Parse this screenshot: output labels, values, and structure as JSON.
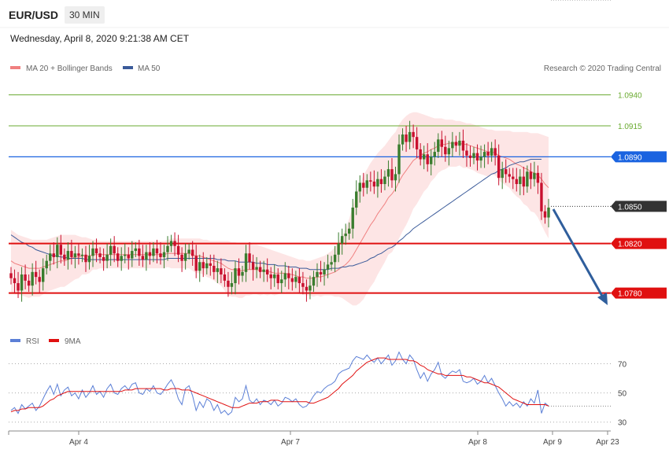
{
  "header": {
    "symbol": "EUR/USD",
    "timeframe": "30 MIN",
    "datetime": "Wednesday, April 8, 2020 9:21:38 AM CET",
    "credit": "Research © 2020 Trading Central"
  },
  "colors": {
    "ma20": "#f08080",
    "ma50": "#3b5b9a",
    "band_fill": "#fde0e0",
    "bull": "#3a7d2e",
    "bear": "#c8102e",
    "resistance": "#1a63e0",
    "support": "#e01010",
    "target_line": "#6aaa30",
    "current": "#333333",
    "arrow": "#2f5e9c",
    "rsi": "#5b7fd6",
    "rsi_ma": "#e01010"
  },
  "chart_data": [
    {
      "type": "candlestick",
      "ylim": [
        1.0755,
        1.0955
      ],
      "legend": [
        {
          "label": "MA 20 + Bollinger Bands",
          "color": "#f08080"
        },
        {
          "label": "MA 50",
          "color": "#3b5b9a"
        }
      ],
      "x_ticks": [
        "Apr 4",
        "Apr 7",
        "Apr 8",
        "Apr 9",
        "Apr 23"
      ],
      "levels": [
        {
          "label": "1.0940",
          "value": 1.094,
          "kind": "target"
        },
        {
          "label": "1.0915",
          "value": 1.0915,
          "kind": "target"
        },
        {
          "label": "1.0890",
          "value": 1.089,
          "kind": "resistance"
        },
        {
          "label": "1.0850",
          "value": 1.085,
          "kind": "current"
        },
        {
          "label": "1.0820",
          "value": 1.082,
          "kind": "support"
        },
        {
          "label": "1.0780",
          "value": 1.078,
          "kind": "support"
        }
      ],
      "close": [
        1.0792,
        1.0788,
        1.0782,
        1.0795,
        1.079,
        1.0786,
        1.0797,
        1.0793,
        1.0789,
        1.08,
        1.0806,
        1.0812,
        1.0809,
        1.0819,
        1.0811,
        1.0807,
        1.0814,
        1.0809,
        1.0812,
        1.081,
        1.0811,
        1.0805,
        1.081,
        1.0816,
        1.0812,
        1.0809,
        1.0806,
        1.0811,
        1.0818,
        1.0812,
        1.0806,
        1.081,
        1.0811,
        1.0808,
        1.0814,
        1.0816,
        1.081,
        1.0807,
        1.0813,
        1.081,
        1.0816,
        1.0812,
        1.0809,
        1.0813,
        1.0818,
        1.0822,
        1.0818,
        1.0811,
        1.0806,
        1.0812,
        1.0815,
        1.081,
        1.0798,
        1.0805,
        1.08,
        1.0804,
        1.0802,
        1.0797,
        1.08,
        1.0795,
        1.079,
        1.0785,
        1.0788,
        1.08,
        1.0794,
        1.0797,
        1.0812,
        1.0805,
        1.0799,
        1.0801,
        1.0797,
        1.0799,
        1.0795,
        1.0792,
        1.0795,
        1.0788,
        1.0791,
        1.0796,
        1.0792,
        1.0789,
        1.0793,
        1.0788,
        1.0785,
        1.0782,
        1.0786,
        1.0793,
        1.0797,
        1.0795,
        1.0799,
        1.0803,
        1.0805,
        1.0811,
        1.082,
        1.0826,
        1.0828,
        1.0832,
        1.0849,
        1.0862,
        1.0869,
        1.0865,
        1.0871,
        1.087,
        1.0866,
        1.0872,
        1.0868,
        1.0874,
        1.088,
        1.0871,
        1.0876,
        1.09,
        1.0908,
        1.0902,
        1.091,
        1.0906,
        1.0896,
        1.0888,
        1.0892,
        1.0884,
        1.089,
        1.0894,
        1.0904,
        1.0898,
        1.0892,
        1.0897,
        1.0902,
        1.0899,
        1.0903,
        1.0895,
        1.0891,
        1.0889,
        1.0893,
        1.0887,
        1.089,
        1.0894,
        1.0891,
        1.0897,
        1.0891,
        1.0873,
        1.088,
        1.0876,
        1.0874,
        1.0872,
        1.0868,
        1.0874,
        1.0866,
        1.0878,
        1.0872,
        1.0877,
        1.0869,
        1.0846,
        1.0841,
        1.0849
      ],
      "ma20": [
        1.0806,
        1.0804,
        1.0803,
        1.0802,
        1.0801,
        1.08,
        1.08,
        1.08,
        1.08,
        1.0801,
        1.0802,
        1.0803,
        1.0804,
        1.0805,
        1.0806,
        1.0806,
        1.0807,
        1.0808,
        1.0809,
        1.0809,
        1.081,
        1.081,
        1.081,
        1.0811,
        1.0811,
        1.0811,
        1.0811,
        1.0811,
        1.0811,
        1.0811,
        1.0811,
        1.0811,
        1.0811,
        1.0811,
        1.0811,
        1.0811,
        1.0811,
        1.0811,
        1.0811,
        1.0811,
        1.0811,
        1.0811,
        1.0811,
        1.0811,
        1.0812,
        1.0812,
        1.0812,
        1.0812,
        1.0812,
        1.0812,
        1.0812,
        1.0811,
        1.081,
        1.081,
        1.0809,
        1.0808,
        1.0807,
        1.0806,
        1.0805,
        1.0804,
        1.0802,
        1.08,
        1.0799,
        1.0799,
        1.0798,
        1.0798,
        1.0799,
        1.0799,
        1.0799,
        1.0799,
        1.0798,
        1.0798,
        1.0797,
        1.0797,
        1.0796,
        1.0796,
        1.0796,
        1.0796,
        1.0795,
        1.0795,
        1.0794,
        1.0793,
        1.0793,
        1.0792,
        1.0792,
        1.0792,
        1.0793,
        1.0793,
        1.0794,
        1.0795,
        1.0796,
        1.0797,
        1.0799,
        1.0801,
        1.0803,
        1.0806,
        1.081,
        1.0815,
        1.082,
        1.0825,
        1.083,
        1.0835,
        1.0839,
        1.0844,
        1.0848,
        1.0852,
        1.0857,
        1.086,
        1.0864,
        1.087,
        1.0875,
        1.0879,
        1.0883,
        1.0887,
        1.0889,
        1.0891,
        1.0893,
        1.0894,
        1.0896,
        1.0897,
        1.0899,
        1.09,
        1.09,
        1.0901,
        1.0901,
        1.0901,
        1.0901,
        1.09,
        1.09,
        1.0899,
        1.0898,
        1.0897,
        1.0896,
        1.0895,
        1.0894,
        1.0894,
        1.0893,
        1.0891,
        1.089,
        1.0889,
        1.0888,
        1.0886,
        1.0884,
        1.0883,
        1.0881,
        1.088,
        1.0878,
        1.0877,
        1.0875,
        1.0872,
        1.0868,
        1.0865
      ],
      "bb_upper": [
        1.0831,
        1.0829,
        1.0827,
        1.0826,
        1.0825,
        1.0824,
        1.0823,
        1.0823,
        1.0823,
        1.0823,
        1.0823,
        1.0824,
        1.0825,
        1.0826,
        1.0827,
        1.0827,
        1.0827,
        1.0827,
        1.0827,
        1.0826,
        1.0825,
        1.0825,
        1.0824,
        1.0823,
        1.0823,
        1.0822,
        1.0822,
        1.0822,
        1.0822,
        1.0822,
        1.0822,
        1.0822,
        1.0822,
        1.0822,
        1.0822,
        1.0822,
        1.0822,
        1.0822,
        1.0822,
        1.0822,
        1.0822,
        1.0822,
        1.0822,
        1.0822,
        1.0823,
        1.0824,
        1.0824,
        1.0824,
        1.0824,
        1.0824,
        1.0824,
        1.0824,
        1.0824,
        1.0824,
        1.0823,
        1.0823,
        1.0822,
        1.0822,
        1.0822,
        1.0822,
        1.0822,
        1.0822,
        1.0821,
        1.0821,
        1.082,
        1.082,
        1.082,
        1.082,
        1.0819,
        1.0819,
        1.0818,
        1.0817,
        1.0816,
        1.0815,
        1.0814,
        1.0813,
        1.0812,
        1.0811,
        1.081,
        1.0809,
        1.0808,
        1.0807,
        1.0807,
        1.0806,
        1.0806,
        1.0807,
        1.0808,
        1.0809,
        1.081,
        1.0812,
        1.0814,
        1.0817,
        1.0821,
        1.0826,
        1.0832,
        1.084,
        1.085,
        1.086,
        1.0868,
        1.0875,
        1.088,
        1.0885,
        1.0889,
        1.0893,
        1.0896,
        1.0899,
        1.0903,
        1.0907,
        1.091,
        1.0916,
        1.092,
        1.0923,
        1.0925,
        1.0926,
        1.0926,
        1.0925,
        1.0924,
        1.0923,
        1.0922,
        1.0921,
        1.0921,
        1.0921,
        1.092,
        1.092,
        1.092,
        1.0919,
        1.0919,
        1.0918,
        1.0917,
        1.0917,
        1.0916,
        1.0915,
        1.0914,
        1.0913,
        1.0912,
        1.0912,
        1.0911,
        1.0911,
        1.0911,
        1.0911,
        1.0911,
        1.091,
        1.091,
        1.091,
        1.091,
        1.091,
        1.0909,
        1.0909,
        1.0909,
        1.0908,
        1.0907,
        1.0906
      ],
      "bb_lower": [
        1.0781,
        1.0779,
        1.0779,
        1.0778,
        1.0777,
        1.0776,
        1.0777,
        1.0777,
        1.0777,
        1.0779,
        1.0781,
        1.0782,
        1.0783,
        1.0784,
        1.0785,
        1.0785,
        1.0787,
        1.0789,
        1.0791,
        1.0792,
        1.0795,
        1.0795,
        1.0796,
        1.0799,
        1.0799,
        1.08,
        1.08,
        1.08,
        1.08,
        1.08,
        1.08,
        1.08,
        1.08,
        1.08,
        1.08,
        1.08,
        1.08,
        1.08,
        1.08,
        1.08,
        1.08,
        1.08,
        1.08,
        1.08,
        1.0801,
        1.08,
        1.08,
        1.08,
        1.08,
        1.08,
        1.08,
        1.0798,
        1.0796,
        1.0796,
        1.0795,
        1.0793,
        1.0792,
        1.079,
        1.0788,
        1.0786,
        1.0782,
        1.0778,
        1.0777,
        1.0777,
        1.0776,
        1.0776,
        1.0778,
        1.0778,
        1.0779,
        1.0779,
        1.0778,
        1.0779,
        1.0778,
        1.0779,
        1.0778,
        1.0779,
        1.078,
        1.0781,
        1.078,
        1.0781,
        1.078,
        1.0779,
        1.0779,
        1.0778,
        1.0778,
        1.0777,
        1.0778,
        1.0777,
        1.0778,
        1.0778,
        1.0778,
        1.0777,
        1.0777,
        1.0776,
        1.0774,
        1.0772,
        1.077,
        1.077,
        1.0772,
        1.0775,
        1.078,
        1.0785,
        1.0789,
        1.0795,
        1.08,
        1.0805,
        1.0811,
        1.0813,
        1.0818,
        1.0824,
        1.083,
        1.0835,
        1.0841,
        1.0848,
        1.0852,
        1.0857,
        1.0862,
        1.0865,
        1.087,
        1.0873,
        1.0877,
        1.0879,
        1.088,
        1.0882,
        1.0882,
        1.0882,
        1.0883,
        1.0881,
        1.0881,
        1.088,
        1.0879,
        1.0877,
        1.0876,
        1.0875,
        1.0874,
        1.0876,
        1.0875,
        1.0871,
        1.0869,
        1.0867,
        1.0865,
        1.0861,
        1.0858,
        1.0856,
        1.0852,
        1.085,
        1.0846,
        1.0845,
        1.0841,
        1.0835,
        1.0829,
        1.0824
      ],
      "ma50": [
        1.0827,
        1.0825,
        1.0823,
        1.0821,
        1.082,
        1.0818,
        1.0817,
        1.0815,
        1.0814,
        1.0813,
        1.0812,
        1.0811,
        1.081,
        1.081,
        1.0809,
        1.0809,
        1.0808,
        1.0808,
        1.0808,
        1.0808,
        1.0808,
        1.0807,
        1.0807,
        1.0807,
        1.0807,
        1.0807,
        1.0807,
        1.0807,
        1.0807,
        1.0807,
        1.0807,
        1.0807,
        1.0807,
        1.0807,
        1.0807,
        1.0807,
        1.0807,
        1.0807,
        1.0807,
        1.0807,
        1.0807,
        1.0807,
        1.0807,
        1.0807,
        1.0808,
        1.0808,
        1.0808,
        1.0808,
        1.0808,
        1.0808,
        1.0808,
        1.0808,
        1.0808,
        1.0808,
        1.0808,
        1.0808,
        1.0808,
        1.0808,
        1.0807,
        1.0807,
        1.0807,
        1.0806,
        1.0806,
        1.0806,
        1.0805,
        1.0805,
        1.0805,
        1.0805,
        1.0805,
        1.0804,
        1.0804,
        1.0804,
        1.0803,
        1.0803,
        1.0803,
        1.0802,
        1.0802,
        1.0802,
        1.0801,
        1.0801,
        1.0801,
        1.08,
        1.08,
        1.08,
        1.0799,
        1.0799,
        1.0799,
        1.0799,
        1.0799,
        1.0799,
        1.08,
        1.08,
        1.08,
        1.0801,
        1.0801,
        1.0802,
        1.0802,
        1.0803,
        1.0804,
        1.0805,
        1.0806,
        1.0808,
        1.0809,
        1.0811,
        1.0812,
        1.0814,
        1.0816,
        1.0817,
        1.0819,
        1.0822,
        1.0824,
        1.0827,
        1.0829,
        1.0832,
        1.0834,
        1.0836,
        1.0838,
        1.084,
        1.0842,
        1.0844,
        1.0846,
        1.0848,
        1.085,
        1.0852,
        1.0854,
        1.0856,
        1.0858,
        1.086,
        1.0862,
        1.0864,
        1.0866,
        1.0868,
        1.087,
        1.0872,
        1.0874,
        1.0876,
        1.0877,
        1.0879,
        1.088,
        1.0881,
        1.0883,
        1.0884,
        1.0885,
        1.0886,
        1.0886,
        1.0887,
        1.0888,
        1.0888,
        1.0888,
        1.0888
      ]
    },
    {
      "type": "line",
      "ylim": [
        25,
        80
      ],
      "y_ticks": [
        70,
        50,
        30
      ],
      "legend": [
        {
          "label": "RSI",
          "color": "#5b7fd6"
        },
        {
          "label": "9MA",
          "color": "#e01010"
        }
      ],
      "series": [
        {
          "name": "RSI",
          "values": [
            38,
            40,
            36,
            42,
            39,
            41,
            43,
            38,
            41,
            46,
            51,
            55,
            49,
            56,
            48,
            52,
            54,
            48,
            50,
            46,
            52,
            47,
            50,
            55,
            49,
            51,
            47,
            53,
            56,
            50,
            49,
            53,
            55,
            52,
            56,
            57,
            50,
            49,
            53,
            51,
            55,
            50,
            49,
            52,
            56,
            59,
            54,
            46,
            42,
            53,
            55,
            48,
            38,
            44,
            40,
            46,
            44,
            38,
            42,
            36,
            38,
            35,
            37,
            47,
            44,
            46,
            55,
            45,
            43,
            46,
            42,
            45,
            44,
            42,
            45,
            41,
            43,
            47,
            46,
            44,
            46,
            42,
            40,
            41,
            44,
            48,
            51,
            50,
            53,
            55,
            56,
            58,
            63,
            65,
            66,
            67,
            72,
            75,
            74,
            73,
            76,
            73,
            71,
            74,
            70,
            73,
            76,
            69,
            72,
            78,
            73,
            70,
            76,
            73,
            66,
            60,
            64,
            58,
            63,
            66,
            71,
            62,
            60,
            63,
            65,
            64,
            66,
            58,
            57,
            58,
            60,
            56,
            58,
            62,
            57,
            60,
            55,
            50,
            46,
            41,
            44,
            41,
            43,
            40,
            44,
            41,
            46,
            43,
            52,
            36,
            43,
            41
          ]
        },
        {
          "name": "9MA",
          "values": [
            37,
            38,
            38,
            39,
            39,
            40,
            40,
            40,
            40,
            41,
            43,
            45,
            46,
            48,
            49,
            50,
            51,
            51,
            51,
            51,
            51,
            51,
            51,
            51,
            51,
            51,
            51,
            51,
            51,
            51,
            51,
            51,
            52,
            52,
            52,
            53,
            53,
            53,
            53,
            53,
            53,
            53,
            53,
            52,
            52,
            53,
            53,
            53,
            52,
            52,
            52,
            51,
            50,
            49,
            48,
            47,
            46,
            45,
            44,
            43,
            42,
            41,
            40,
            40,
            40,
            41,
            42,
            43,
            43,
            43,
            44,
            44,
            44,
            45,
            45,
            45,
            44,
            44,
            44,
            44,
            44,
            44,
            44,
            44,
            43,
            43,
            44,
            45,
            46,
            47,
            49,
            51,
            53,
            56,
            58,
            60,
            62,
            65,
            67,
            69,
            71,
            72,
            73,
            74,
            74,
            74,
            73,
            73,
            73,
            73,
            73,
            73,
            72,
            72,
            71,
            69,
            68,
            66,
            65,
            64,
            63,
            63,
            62,
            62,
            62,
            62,
            62,
            62,
            61,
            61,
            60,
            59,
            58,
            57,
            57,
            56,
            55,
            54,
            52,
            50,
            48,
            46,
            45,
            44,
            43,
            42,
            42,
            42,
            42,
            42,
            42,
            41
          ]
        }
      ]
    }
  ]
}
